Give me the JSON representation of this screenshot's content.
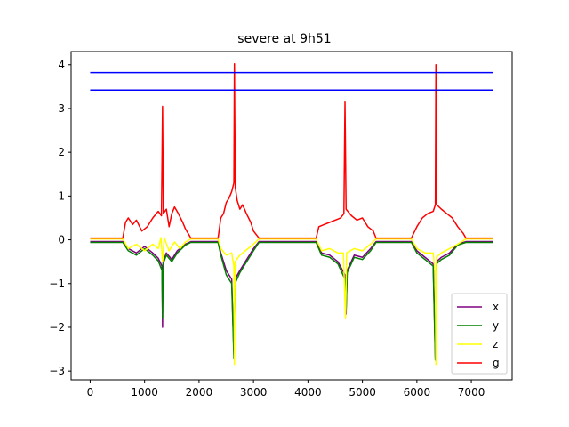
{
  "chart_data": {
    "type": "line",
    "title": "severe at 9h51",
    "xlabel": "",
    "ylabel": "",
    "xlim": [
      -350,
      7750
    ],
    "ylim": [
      -3.2,
      4.3
    ],
    "xticks": [
      0,
      1000,
      2000,
      3000,
      4000,
      5000,
      6000,
      7000
    ],
    "yticks": [
      -3,
      -2,
      -1,
      0,
      1,
      2,
      3,
      4
    ],
    "grid": false,
    "legend_position": "lower-right",
    "thresholds": [
      {
        "name": "",
        "color": "#0000ff",
        "x": [
          0,
          7400
        ],
        "y": 3.82
      },
      {
        "name": "",
        "color": "#0000ff",
        "x": [
          0,
          7400
        ],
        "y": 3.42
      }
    ],
    "series": [
      {
        "name": "x",
        "color": "#800080",
        "points": [
          [
            0,
            -0.04
          ],
          [
            600,
            -0.04
          ],
          [
            700,
            -0.2
          ],
          [
            850,
            -0.3
          ],
          [
            1000,
            -0.15
          ],
          [
            1150,
            -0.3
          ],
          [
            1250,
            -0.42
          ],
          [
            1320,
            -0.6
          ],
          [
            1330,
            -2.0
          ],
          [
            1340,
            -0.5
          ],
          [
            1400,
            -0.3
          ],
          [
            1500,
            -0.45
          ],
          [
            1600,
            -0.25
          ],
          [
            1750,
            -0.1
          ],
          [
            1850,
            -0.04
          ],
          [
            2350,
            -0.04
          ],
          [
            2400,
            -0.3
          ],
          [
            2500,
            -0.7
          ],
          [
            2600,
            -0.9
          ],
          [
            2640,
            -2.6
          ],
          [
            2660,
            -0.9
          ],
          [
            2750,
            -0.7
          ],
          [
            2850,
            -0.5
          ],
          [
            3000,
            -0.2
          ],
          [
            3100,
            -0.04
          ],
          [
            4150,
            -0.04
          ],
          [
            4250,
            -0.3
          ],
          [
            4400,
            -0.35
          ],
          [
            4550,
            -0.5
          ],
          [
            4680,
            -0.8
          ],
          [
            4700,
            -1.7
          ],
          [
            4720,
            -0.7
          ],
          [
            4850,
            -0.35
          ],
          [
            5000,
            -0.4
          ],
          [
            5150,
            -0.2
          ],
          [
            5250,
            -0.04
          ],
          [
            5900,
            -0.04
          ],
          [
            6000,
            -0.25
          ],
          [
            6150,
            -0.4
          ],
          [
            6300,
            -0.55
          ],
          [
            6340,
            -2.7
          ],
          [
            6360,
            -0.5
          ],
          [
            6450,
            -0.4
          ],
          [
            6600,
            -0.3
          ],
          [
            6750,
            -0.1
          ],
          [
            6900,
            -0.04
          ],
          [
            7400,
            -0.04
          ]
        ]
      },
      {
        "name": "y",
        "color": "#008000",
        "points": [
          [
            0,
            -0.06
          ],
          [
            600,
            -0.06
          ],
          [
            700,
            -0.25
          ],
          [
            850,
            -0.35
          ],
          [
            1000,
            -0.2
          ],
          [
            1150,
            -0.35
          ],
          [
            1250,
            -0.48
          ],
          [
            1320,
            -0.7
          ],
          [
            1330,
            -1.8
          ],
          [
            1340,
            -0.55
          ],
          [
            1400,
            -0.35
          ],
          [
            1500,
            -0.5
          ],
          [
            1600,
            -0.3
          ],
          [
            1750,
            -0.12
          ],
          [
            1850,
            -0.06
          ],
          [
            2350,
            -0.06
          ],
          [
            2400,
            -0.35
          ],
          [
            2500,
            -0.8
          ],
          [
            2600,
            -1.0
          ],
          [
            2640,
            -2.7
          ],
          [
            2660,
            -1.0
          ],
          [
            2750,
            -0.75
          ],
          [
            2850,
            -0.55
          ],
          [
            3000,
            -0.25
          ],
          [
            3100,
            -0.06
          ],
          [
            4150,
            -0.06
          ],
          [
            4250,
            -0.35
          ],
          [
            4400,
            -0.4
          ],
          [
            4550,
            -0.55
          ],
          [
            4680,
            -0.9
          ],
          [
            4700,
            -1.6
          ],
          [
            4720,
            -0.75
          ],
          [
            4850,
            -0.4
          ],
          [
            5000,
            -0.45
          ],
          [
            5150,
            -0.25
          ],
          [
            5250,
            -0.06
          ],
          [
            5900,
            -0.06
          ],
          [
            6000,
            -0.3
          ],
          [
            6150,
            -0.45
          ],
          [
            6300,
            -0.6
          ],
          [
            6340,
            -2.75
          ],
          [
            6360,
            -0.55
          ],
          [
            6450,
            -0.45
          ],
          [
            6600,
            -0.35
          ],
          [
            6750,
            -0.12
          ],
          [
            6900,
            -0.06
          ],
          [
            7400,
            -0.06
          ]
        ]
      },
      {
        "name": "z",
        "color": "#ffff00",
        "points": [
          [
            0,
            0.02
          ],
          [
            600,
            0.02
          ],
          [
            700,
            -0.2
          ],
          [
            850,
            -0.1
          ],
          [
            1000,
            -0.25
          ],
          [
            1150,
            -0.1
          ],
          [
            1250,
            -0.2
          ],
          [
            1300,
            0.05
          ],
          [
            1330,
            -0.5
          ],
          [
            1360,
            0.05
          ],
          [
            1450,
            -0.25
          ],
          [
            1550,
            -0.05
          ],
          [
            1650,
            -0.2
          ],
          [
            1750,
            -0.05
          ],
          [
            1850,
            0.02
          ],
          [
            2350,
            0.02
          ],
          [
            2400,
            -0.2
          ],
          [
            2500,
            -0.35
          ],
          [
            2600,
            -0.3
          ],
          [
            2640,
            -0.6
          ],
          [
            2650,
            -2.85
          ],
          [
            2660,
            -0.5
          ],
          [
            2750,
            -0.35
          ],
          [
            2850,
            -0.25
          ],
          [
            3000,
            -0.1
          ],
          [
            3100,
            0.02
          ],
          [
            4150,
            0.02
          ],
          [
            4250,
            -0.25
          ],
          [
            4400,
            -0.2
          ],
          [
            4550,
            -0.3
          ],
          [
            4650,
            -0.3
          ],
          [
            4690,
            -1.8
          ],
          [
            4710,
            -0.3
          ],
          [
            4850,
            -0.2
          ],
          [
            5000,
            -0.25
          ],
          [
            5150,
            -0.1
          ],
          [
            5250,
            0.02
          ],
          [
            5900,
            0.02
          ],
          [
            6000,
            -0.2
          ],
          [
            6150,
            -0.3
          ],
          [
            6300,
            -0.3
          ],
          [
            6340,
            -0.8
          ],
          [
            6350,
            -2.85
          ],
          [
            6360,
            -0.4
          ],
          [
            6450,
            -0.3
          ],
          [
            6600,
            -0.2
          ],
          [
            6750,
            -0.1
          ],
          [
            6900,
            0.02
          ],
          [
            7400,
            0.02
          ]
        ]
      },
      {
        "name": "g",
        "color": "#ff0000",
        "points": [
          [
            0,
            0.04
          ],
          [
            600,
            0.04
          ],
          [
            650,
            0.4
          ],
          [
            700,
            0.5
          ],
          [
            780,
            0.35
          ],
          [
            850,
            0.45
          ],
          [
            950,
            0.2
          ],
          [
            1050,
            0.3
          ],
          [
            1150,
            0.5
          ],
          [
            1250,
            0.65
          ],
          [
            1310,
            0.55
          ],
          [
            1330,
            3.05
          ],
          [
            1345,
            0.6
          ],
          [
            1400,
            0.7
          ],
          [
            1450,
            0.3
          ],
          [
            1500,
            0.6
          ],
          [
            1550,
            0.75
          ],
          [
            1620,
            0.6
          ],
          [
            1700,
            0.4
          ],
          [
            1750,
            0.25
          ],
          [
            1850,
            0.04
          ],
          [
            2350,
            0.04
          ],
          [
            2400,
            0.5
          ],
          [
            2450,
            0.6
          ],
          [
            2500,
            0.85
          ],
          [
            2550,
            0.95
          ],
          [
            2600,
            1.1
          ],
          [
            2640,
            1.3
          ],
          [
            2650,
            4.02
          ],
          [
            2665,
            1.2
          ],
          [
            2700,
            0.9
          ],
          [
            2750,
            0.7
          ],
          [
            2800,
            0.8
          ],
          [
            2870,
            0.6
          ],
          [
            2950,
            0.4
          ],
          [
            3000,
            0.2
          ],
          [
            3100,
            0.04
          ],
          [
            4150,
            0.04
          ],
          [
            4200,
            0.3
          ],
          [
            4300,
            0.35
          ],
          [
            4400,
            0.4
          ],
          [
            4500,
            0.45
          ],
          [
            4600,
            0.5
          ],
          [
            4660,
            0.6
          ],
          [
            4680,
            3.15
          ],
          [
            4700,
            0.7
          ],
          [
            4800,
            0.55
          ],
          [
            4900,
            0.45
          ],
          [
            5000,
            0.5
          ],
          [
            5100,
            0.3
          ],
          [
            5200,
            0.2
          ],
          [
            5250,
            0.04
          ],
          [
            5900,
            0.04
          ],
          [
            6000,
            0.3
          ],
          [
            6100,
            0.5
          ],
          [
            6200,
            0.6
          ],
          [
            6300,
            0.65
          ],
          [
            6340,
            0.8
          ],
          [
            6350,
            4.0
          ],
          [
            6365,
            0.8
          ],
          [
            6450,
            0.7
          ],
          [
            6550,
            0.6
          ],
          [
            6650,
            0.5
          ],
          [
            6750,
            0.3
          ],
          [
            6850,
            0.15
          ],
          [
            6900,
            0.04
          ],
          [
            7400,
            0.04
          ]
        ]
      }
    ]
  }
}
